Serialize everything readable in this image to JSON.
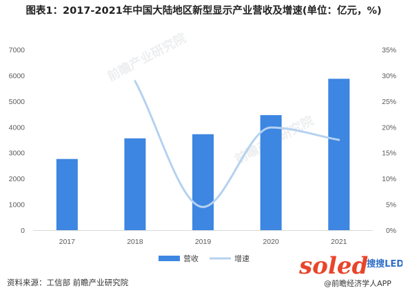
{
  "title": "图表1：2017-2021年中国大陆地区新型显示产业营收及增速(单位：亿元，%)",
  "source": "资料来源：工信部 前瞻产业研究院",
  "watermark": {
    "primary": "前瞻产业研究院"
  },
  "brand": {
    "logo_text": "soled",
    "logo_sub": "搜搜LED网",
    "app_text": "@前瞻经济学人APP"
  },
  "colors": {
    "bar": "#3d86e2",
    "line": "#b5d1ef",
    "axis": "#d9d9d9",
    "logo_red": "#e8452b",
    "logo_blue": "#2f6fc9"
  },
  "chart_data": {
    "type": "bar",
    "categories": [
      "2017",
      "2018",
      "2019",
      "2020",
      "2021"
    ],
    "series": [
      {
        "name": "营收",
        "type": "bar",
        "axis": "left",
        "values": [
          2760,
          3560,
          3720,
          4460,
          5870
        ]
      },
      {
        "name": "增速",
        "type": "line",
        "axis": "right",
        "smooth": true,
        "values": [
          null,
          28.9,
          4.5,
          19.9,
          17.5
        ]
      }
    ],
    "y_left": {
      "range": [
        0,
        7000
      ],
      "ticks": [
        "0",
        "1000",
        "2000",
        "3000",
        "4000",
        "5000",
        "6000",
        "7000"
      ]
    },
    "y_right": {
      "range": [
        0,
        35
      ],
      "ticks": [
        "0%",
        "5%",
        "10%",
        "15%",
        "20%",
        "25%",
        "30%",
        "35%"
      ]
    },
    "grid": false,
    "legend_position": "bottom"
  }
}
